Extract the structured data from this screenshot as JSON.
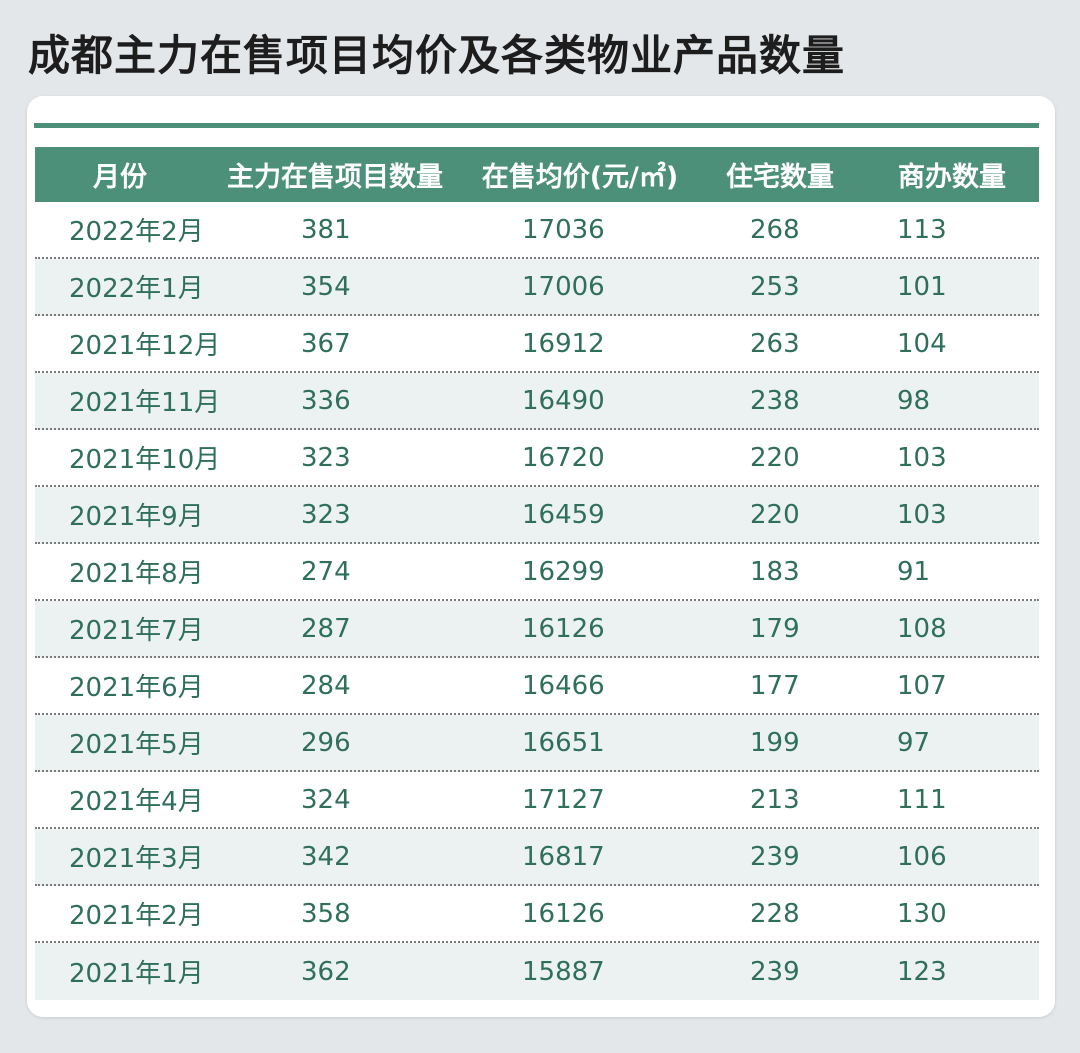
{
  "title": "成都主力在售项目均价及各类物业产品数量",
  "table": {
    "headers": [
      "月份",
      "主力在售项目数量",
      "在售均价(元/㎡)",
      "住宅数量",
      "商办数量"
    ],
    "rows": [
      [
        "2022年2月",
        "381",
        "17036",
        "268",
        "113"
      ],
      [
        "2022年1月",
        "354",
        "17006",
        "253",
        "101"
      ],
      [
        "2021年12月",
        "367",
        "16912",
        "263",
        "104"
      ],
      [
        "2021年11月",
        "336",
        "16490",
        "238",
        "98"
      ],
      [
        "2021年10月",
        "323",
        "16720",
        "220",
        "103"
      ],
      [
        "2021年9月",
        "323",
        "16459",
        "220",
        "103"
      ],
      [
        "2021年8月",
        "274",
        "16299",
        "183",
        "91"
      ],
      [
        "2021年7月",
        "287",
        "16126",
        "179",
        "108"
      ],
      [
        "2021年6月",
        "284",
        "16466",
        "177",
        "107"
      ],
      [
        "2021年5月",
        "296",
        "16651",
        "199",
        "97"
      ],
      [
        "2021年4月",
        "324",
        "17127",
        "213",
        "111"
      ],
      [
        "2021年3月",
        "342",
        "16817",
        "239",
        "106"
      ],
      [
        "2021年2月",
        "358",
        "16126",
        "228",
        "130"
      ],
      [
        "2021年1月",
        "362",
        "15887",
        "239",
        "123"
      ]
    ]
  },
  "colors": {
    "header_bg": "#4d9079",
    "text": "#2f6f5c",
    "alt_row_bg": "#ecf1f1",
    "page_bg": "#e4e7ea"
  }
}
